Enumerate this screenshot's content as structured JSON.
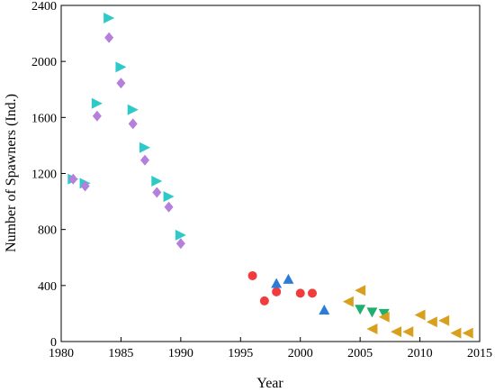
{
  "chart_data": {
    "type": "scatter",
    "title": "",
    "xlabel": "Year",
    "ylabel": "Number of Spawners (Ind.)",
    "xlim": [
      1980,
      2015
    ],
    "ylim": [
      0,
      2400
    ],
    "xticks": [
      1980,
      1985,
      1990,
      1995,
      2000,
      2005,
      2010,
      2015
    ],
    "yticks": [
      0,
      400,
      800,
      1200,
      1600,
      2000,
      2400
    ],
    "grid": false,
    "legend": "none",
    "series": [
      {
        "marker": "triangle-right",
        "color": "#2ec9c9",
        "points": [
          [
            1981,
            1160
          ],
          [
            1982,
            1130
          ],
          [
            1983,
            1700
          ],
          [
            1984,
            2310
          ],
          [
            1985,
            1960
          ],
          [
            1986,
            1655
          ],
          [
            1987,
            1385
          ],
          [
            1988,
            1145
          ],
          [
            1989,
            1035
          ],
          [
            1990,
            760
          ]
        ]
      },
      {
        "marker": "diamond",
        "color": "#b57fdc",
        "points": [
          [
            1981,
            1160
          ],
          [
            1982,
            1110
          ],
          [
            1983,
            1610
          ],
          [
            1984,
            2170
          ],
          [
            1985,
            1845
          ],
          [
            1986,
            1555
          ],
          [
            1987,
            1295
          ],
          [
            1988,
            1065
          ],
          [
            1989,
            960
          ],
          [
            1990,
            700
          ]
        ]
      },
      {
        "marker": "circle",
        "color": "#f03c3c",
        "points": [
          [
            1996,
            470
          ],
          [
            1997,
            290
          ],
          [
            1998,
            355
          ],
          [
            2000,
            345
          ],
          [
            2001,
            345
          ]
        ]
      },
      {
        "marker": "triangle-up",
        "color": "#2b7bd9",
        "points": [
          [
            1998,
            415
          ],
          [
            1999,
            445
          ],
          [
            2002,
            225
          ]
        ]
      },
      {
        "marker": "triangle-down",
        "color": "#1faf6e",
        "points": [
          [
            2005,
            230
          ],
          [
            2006,
            210
          ],
          [
            2007,
            200
          ]
        ]
      },
      {
        "marker": "triangle-left",
        "color": "#d9a020",
        "points": [
          [
            2004,
            285
          ],
          [
            2005,
            365
          ],
          [
            2006,
            90
          ],
          [
            2007,
            175
          ],
          [
            2008,
            70
          ],
          [
            2009,
            70
          ],
          [
            2010,
            190
          ],
          [
            2011,
            140
          ],
          [
            2012,
            150
          ],
          [
            2013,
            60
          ],
          [
            2014,
            60
          ]
        ]
      }
    ]
  }
}
